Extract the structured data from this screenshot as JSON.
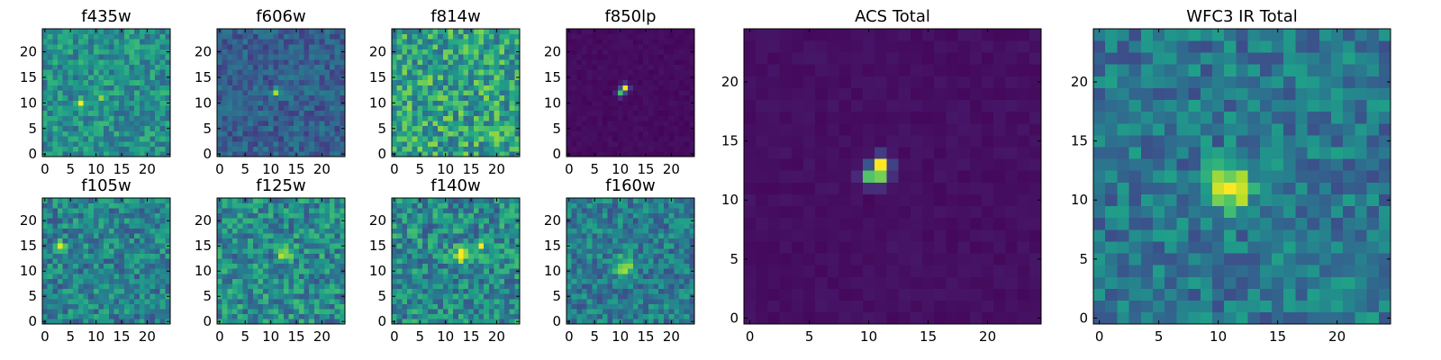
{
  "figure": {
    "colormap": "viridis",
    "colormap_stops": [
      "#440154",
      "#482878",
      "#3e4a89",
      "#31688e",
      "#26828e",
      "#1f9e89",
      "#35b779",
      "#6ece58",
      "#b5de2b",
      "#fde725"
    ]
  },
  "chart_data": [
    {
      "type": "heatmap",
      "title": "f435w",
      "grid": [
        25,
        25
      ],
      "xlim": [
        0,
        24
      ],
      "ylim": [
        0,
        24
      ],
      "xticks": [
        0,
        5,
        10,
        15,
        20
      ],
      "yticks": [
        0,
        5,
        10,
        15,
        20
      ],
      "background": 0.5,
      "noise": 0.18,
      "peaks": [
        {
          "x": 7,
          "y": 10,
          "amp": 0.45,
          "sigma": 0.6
        },
        {
          "x": 11,
          "y": 11,
          "amp": 0.3,
          "sigma": 0.6
        }
      ]
    },
    {
      "type": "heatmap",
      "title": "f606w",
      "grid": [
        25,
        25
      ],
      "xlim": [
        0,
        24
      ],
      "ylim": [
        0,
        24
      ],
      "xticks": [
        0,
        5,
        10,
        15,
        20
      ],
      "yticks": [
        0,
        5,
        10,
        15,
        20
      ],
      "background": 0.3,
      "noise": 0.13,
      "peaks": [
        {
          "x": 11,
          "y": 12,
          "amp": 0.7,
          "sigma": 0.55
        }
      ]
    },
    {
      "type": "heatmap",
      "title": "f814w",
      "grid": [
        25,
        25
      ],
      "xlim": [
        0,
        24
      ],
      "ylim": [
        0,
        24
      ],
      "xticks": [
        0,
        5,
        10,
        15,
        20
      ],
      "yticks": [
        0,
        5,
        10,
        15,
        20
      ],
      "background": 0.58,
      "noise": 0.25,
      "peaks": []
    },
    {
      "type": "heatmap",
      "title": "f850lp",
      "grid": [
        25,
        25
      ],
      "xlim": [
        0,
        24
      ],
      "ylim": [
        0,
        24
      ],
      "xticks": [
        0,
        5,
        10,
        15,
        20
      ],
      "yticks": [
        0,
        5,
        10,
        15,
        20
      ],
      "background": 0.03,
      "noise": 0.02,
      "peaks": [
        {
          "x": 10,
          "y": 12,
          "amp": 0.65,
          "sigma": 0.5
        },
        {
          "x": 11,
          "y": 13,
          "amp": 0.95,
          "sigma": 0.5
        }
      ]
    },
    {
      "type": "heatmap",
      "title": "f105w",
      "grid": [
        25,
        25
      ],
      "xlim": [
        0,
        24
      ],
      "ylim": [
        0,
        24
      ],
      "xticks": [
        0,
        5,
        10,
        15,
        20
      ],
      "yticks": [
        0,
        5,
        10,
        15,
        20
      ],
      "background": 0.45,
      "noise": 0.2,
      "peaks": [
        {
          "x": 3,
          "y": 15,
          "amp": 0.5,
          "sigma": 0.6
        }
      ]
    },
    {
      "type": "heatmap",
      "title": "f125w",
      "grid": [
        25,
        25
      ],
      "xlim": [
        0,
        24
      ],
      "ylim": [
        0,
        24
      ],
      "xticks": [
        0,
        5,
        10,
        15,
        20
      ],
      "yticks": [
        0,
        5,
        10,
        15,
        20
      ],
      "background": 0.48,
      "noise": 0.22,
      "peaks": [
        {
          "x": 13,
          "y": 13,
          "amp": 0.4,
          "sigma": 1.0
        }
      ]
    },
    {
      "type": "heatmap",
      "title": "f140w",
      "grid": [
        25,
        25
      ],
      "xlim": [
        0,
        24
      ],
      "ylim": [
        0,
        24
      ],
      "xticks": [
        0,
        5,
        10,
        15,
        20
      ],
      "yticks": [
        0,
        5,
        10,
        15,
        20
      ],
      "background": 0.48,
      "noise": 0.22,
      "peaks": [
        {
          "x": 13,
          "y": 13,
          "amp": 0.45,
          "sigma": 1.2
        },
        {
          "x": 17,
          "y": 15,
          "amp": 0.35,
          "sigma": 0.8
        }
      ]
    },
    {
      "type": "heatmap",
      "title": "f160w",
      "grid": [
        25,
        25
      ],
      "xlim": [
        0,
        24
      ],
      "ylim": [
        0,
        24
      ],
      "xticks": [
        0,
        5,
        10,
        15,
        20
      ],
      "yticks": [
        0,
        5,
        10,
        15,
        20
      ],
      "background": 0.42,
      "noise": 0.18,
      "peaks": [
        {
          "x": 11,
          "y": 11,
          "amp": 0.55,
          "sigma": 1.2
        }
      ]
    },
    {
      "type": "heatmap",
      "title": "ACS Total",
      "grid": [
        25,
        25
      ],
      "xlim": [
        0,
        24
      ],
      "ylim": [
        0,
        24
      ],
      "xticks": [
        0,
        5,
        10,
        15,
        20
      ],
      "yticks": [
        0,
        5,
        10,
        15,
        20
      ],
      "background": 0.04,
      "noise": 0.02,
      "peaks": [
        {
          "x": 10,
          "y": 12,
          "amp": 0.6,
          "sigma": 0.5
        },
        {
          "x": 11,
          "y": 13,
          "amp": 0.95,
          "sigma": 0.5
        },
        {
          "x": 11,
          "y": 12,
          "amp": 0.55,
          "sigma": 0.5
        }
      ]
    },
    {
      "type": "heatmap",
      "title": "WFC3 IR Total",
      "grid": [
        25,
        25
      ],
      "xlim": [
        0,
        24
      ],
      "ylim": [
        0,
        24
      ],
      "xticks": [
        0,
        5,
        10,
        15,
        20
      ],
      "yticks": [
        0,
        5,
        10,
        15,
        20
      ],
      "background": 0.4,
      "noise": 0.17,
      "peaks": [
        {
          "x": 11,
          "y": 11,
          "amp": 0.6,
          "sigma": 1.3
        }
      ]
    }
  ]
}
